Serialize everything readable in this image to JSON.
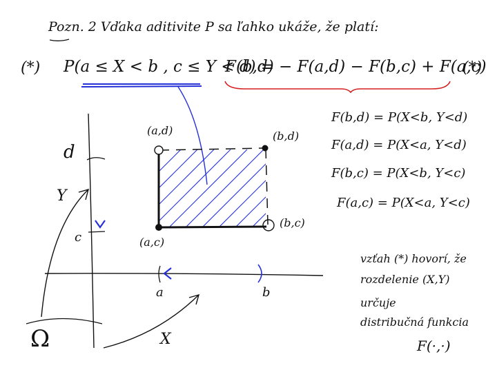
{
  "heading": {
    "text": "Pozn. 2  Vďaka aditivite P sa ľahko ukáže, že platí:"
  },
  "formula": {
    "star_left": "(*)",
    "lhs": "P(a ≤ X < b , c ≤ Y < d) =",
    "rhs": "F(b,d) − F(a,d) − F(b,c) + F(a,c)",
    "star_right": "(*)"
  },
  "identities": [
    {
      "text": "F(b,d) = P(X<b, Y<d)"
    },
    {
      "text": "F(a,d) = P(X<a, Y<d)"
    },
    {
      "text": "F(b,c) = P(X<b, Y<c)"
    },
    {
      "text": "F(a,c) = P(X<a, Y<c)"
    }
  ],
  "diagram": {
    "corner_ad": "(a,d)",
    "corner_bd": "(b,d)",
    "corner_ac": "(a,c)",
    "corner_bc": "(b,c)",
    "axis_y_name": "Y",
    "axis_x_name": "X",
    "tick_d": "d",
    "tick_c": "c",
    "tick_a": "a",
    "tick_b": "b",
    "omega": "Ω"
  },
  "note": {
    "line1": "vzťah (*) hovorí, že",
    "line2": "rozdelenie (X,Y)",
    "line3": "určuje",
    "line4": "distribučná funkcia",
    "line5": "F(·,·)"
  },
  "colors": {
    "ink": "#111111",
    "blue": "#2430d8",
    "red": "#d41e1e"
  }
}
